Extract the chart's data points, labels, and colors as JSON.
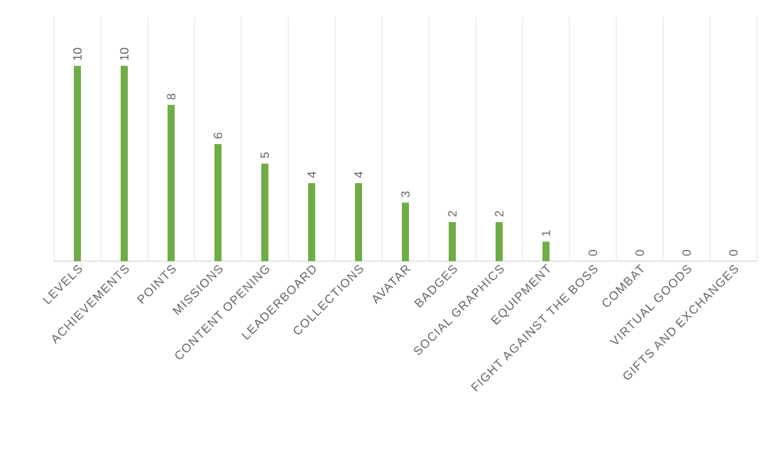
{
  "chart_data": {
    "type": "bar",
    "categories": [
      "LEVELS",
      "ACHIEVEMENTS",
      "POINTS",
      "MISSIONS",
      "CONTENT OPENING",
      "LEADERBOARD",
      "COLLECTIONS",
      "AVATAR",
      "BADGES",
      "SOCIAL GRAPHICS",
      "EQUIPMENT",
      "FIGHT AGAINST THE BOSS",
      "COMBAT",
      "VIRTUAL GOODS",
      "GIFTS AND EXCHANGES"
    ],
    "values": [
      10,
      10,
      8,
      6,
      5,
      4,
      4,
      3,
      2,
      2,
      1,
      0,
      0,
      0,
      0
    ],
    "color": "#70ad47",
    "data_labels": true,
    "grid": "x"
  }
}
